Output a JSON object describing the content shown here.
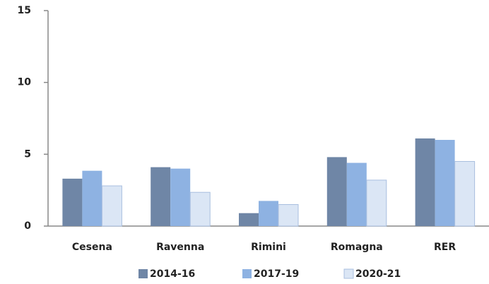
{
  "chart_data": {
    "type": "bar",
    "categories": [
      "Cesena",
      "Ravenna",
      "Rimini",
      "Romagna",
      "RER"
    ],
    "series": [
      {
        "name": "2014-16",
        "color": "#6f86a6",
        "values": [
          3.3,
          4.1,
          0.9,
          4.8,
          6.1
        ]
      },
      {
        "name": "2017-19",
        "color": "#8eb2e2",
        "values": [
          3.85,
          4.0,
          1.75,
          4.4,
          6.0
        ]
      },
      {
        "name": "2020-21",
        "color": "#dbe6f5",
        "values": [
          2.8,
          2.35,
          1.5,
          3.2,
          4.5
        ]
      }
    ],
    "ylim": [
      0,
      15
    ],
    "yticks": [
      0,
      5,
      10,
      15
    ],
    "legend": "bottom"
  }
}
